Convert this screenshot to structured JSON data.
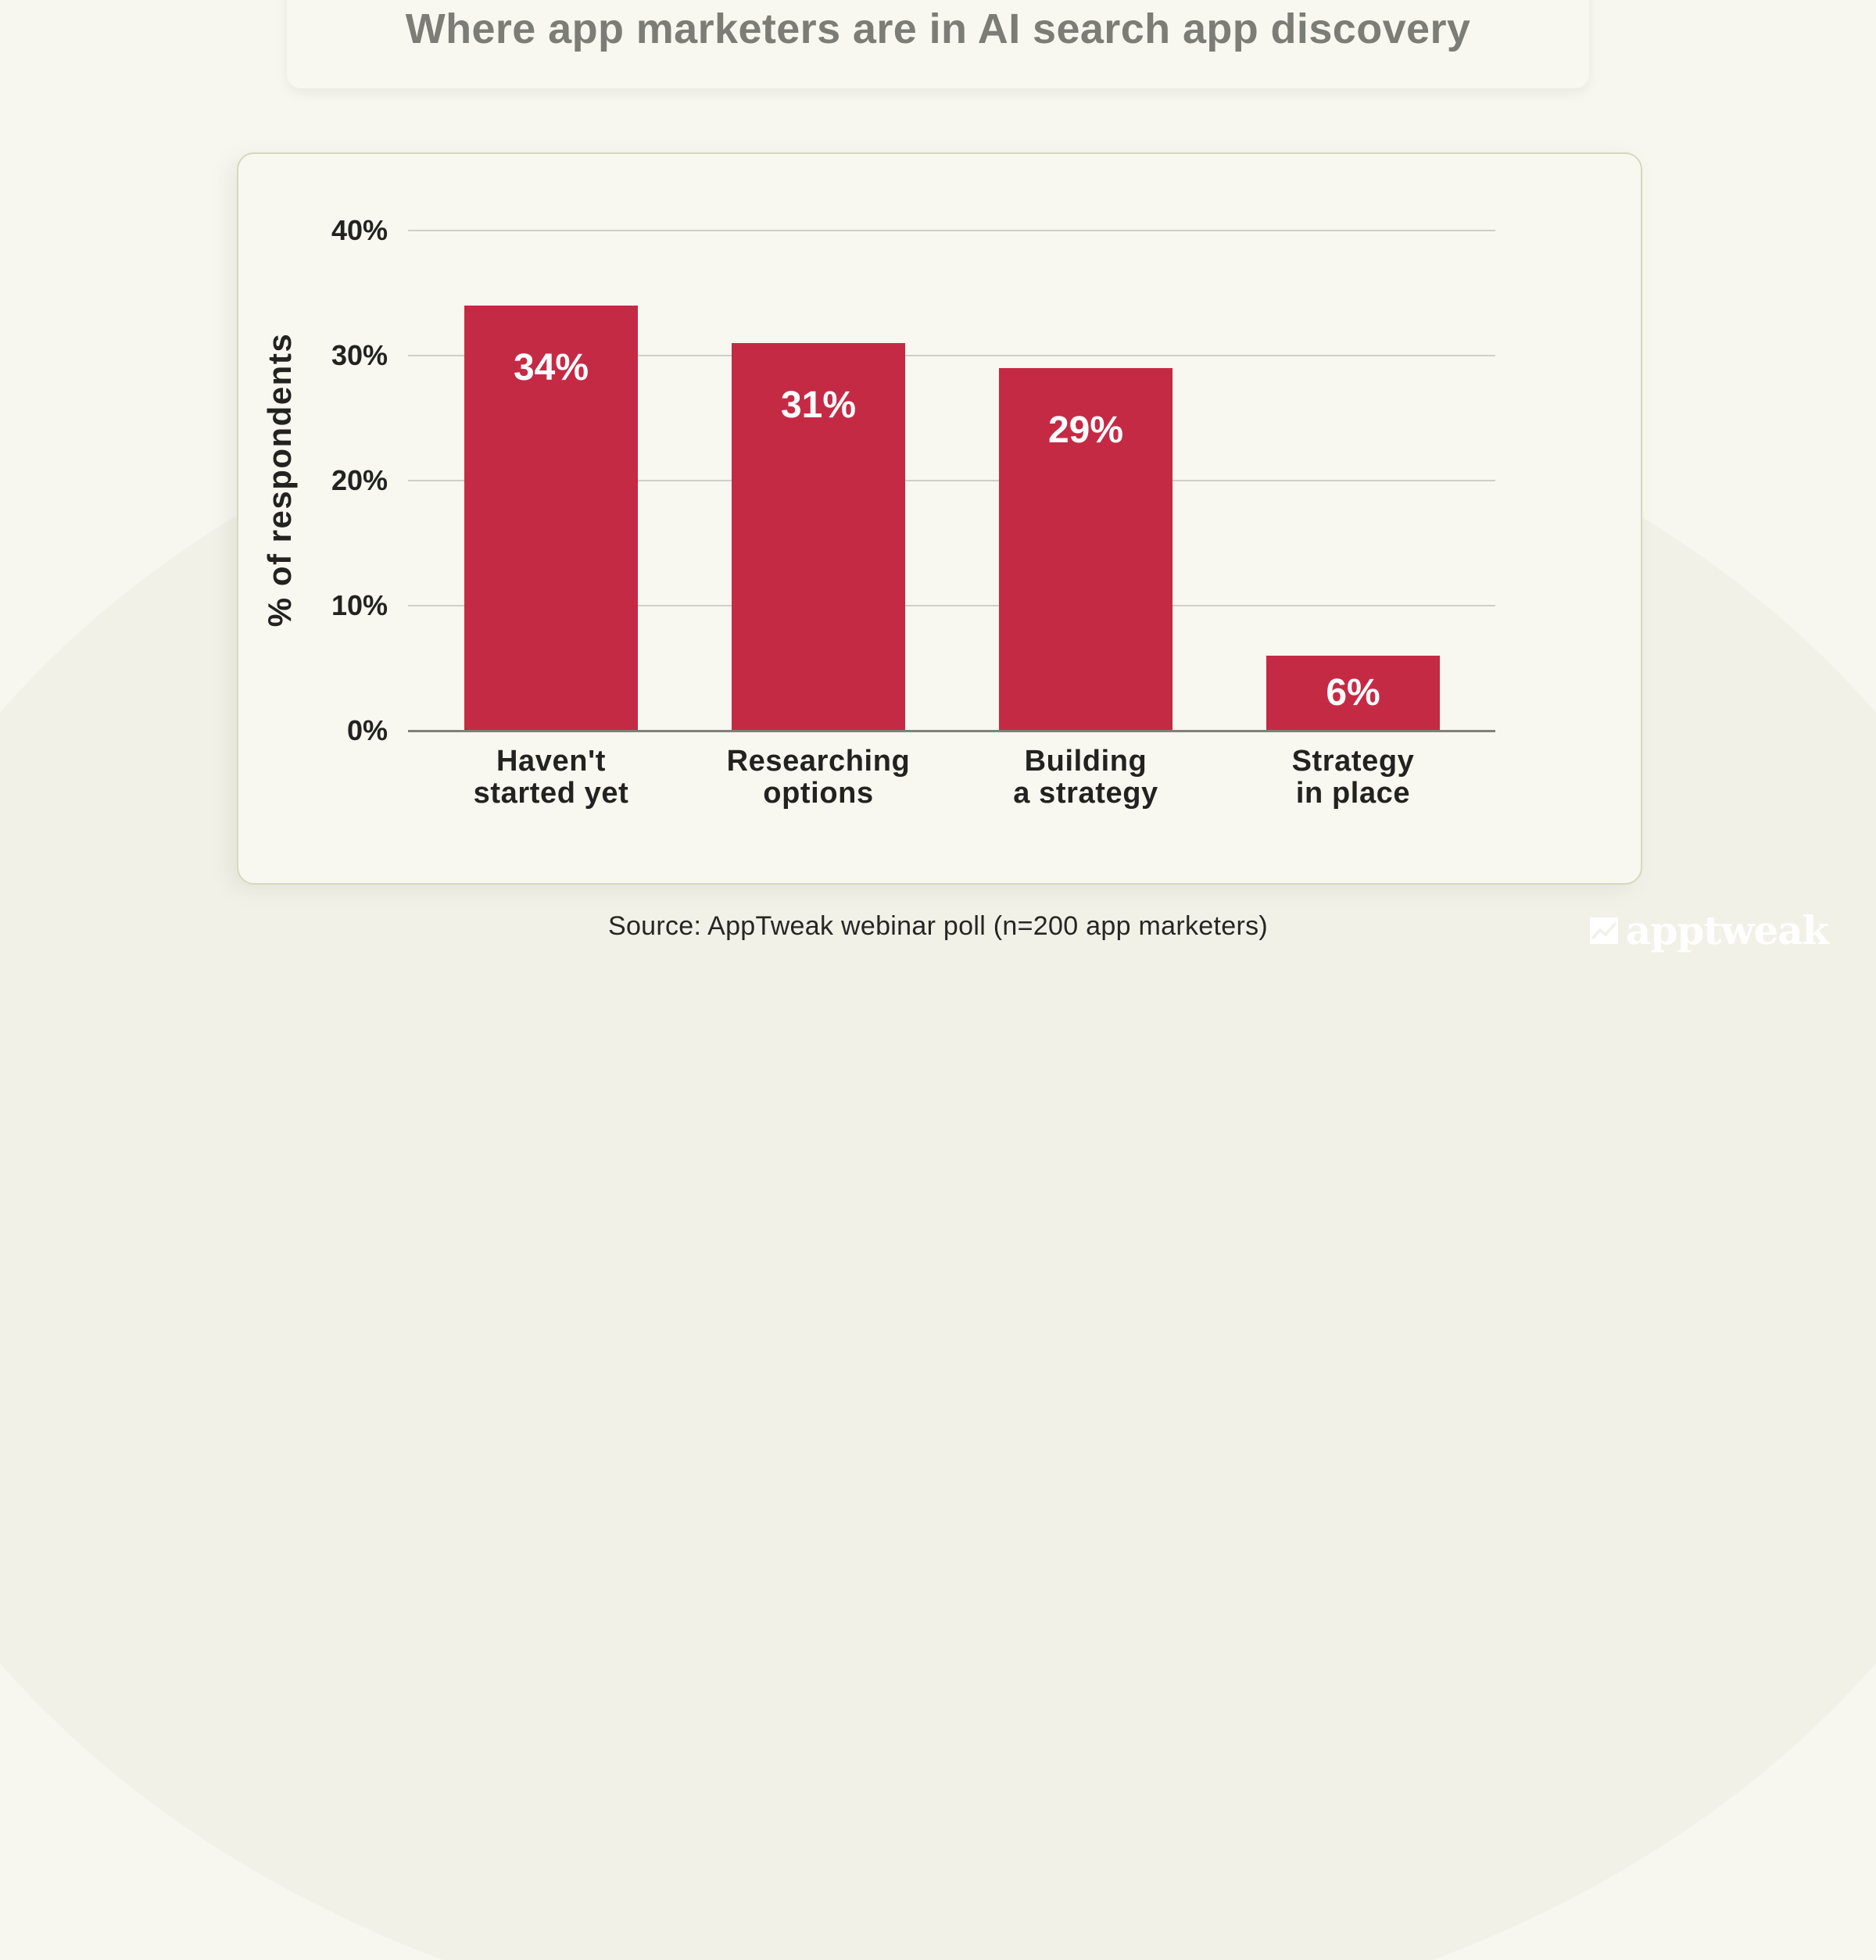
{
  "title": "Where app marketers are in AI search app discovery",
  "source": "Source: AppTweak webinar poll (n=200 app marketers)",
  "brand": {
    "name": "apptweak",
    "icon": "trend-chart-icon"
  },
  "colors": {
    "background": "#f7f7f0",
    "card": "#f8f8f1",
    "card_border": "#d6d8bc",
    "bar": "#c52a45",
    "title": "#7b7d76",
    "text": "#222220",
    "gridline": "#cfd0c5",
    "axis": "#7e807a"
  },
  "chart_data": {
    "type": "bar",
    "title": "Where app marketers are in AI search app discovery",
    "xlabel": "",
    "ylabel": "% of respondents",
    "ylim": [
      0,
      40
    ],
    "yticks": [
      0,
      10,
      20,
      30,
      40
    ],
    "ytick_labels": [
      "0%",
      "10%",
      "20%",
      "30%",
      "40%"
    ],
    "grid": true,
    "legend": null,
    "categories": [
      "Haven't started yet",
      "Researching options",
      "Building a strategy",
      "Strategy in place"
    ],
    "category_lines": [
      [
        "Haven't",
        "started yet"
      ],
      [
        "Researching",
        "options"
      ],
      [
        "Building",
        "a strategy"
      ],
      [
        "Strategy",
        "in place"
      ]
    ],
    "values": [
      34,
      31,
      29,
      6
    ],
    "value_labels": [
      "34%",
      "31%",
      "29%",
      "6%"
    ],
    "annotations": [
      "Source: AppTweak webinar poll (n=200 app marketers)"
    ]
  }
}
